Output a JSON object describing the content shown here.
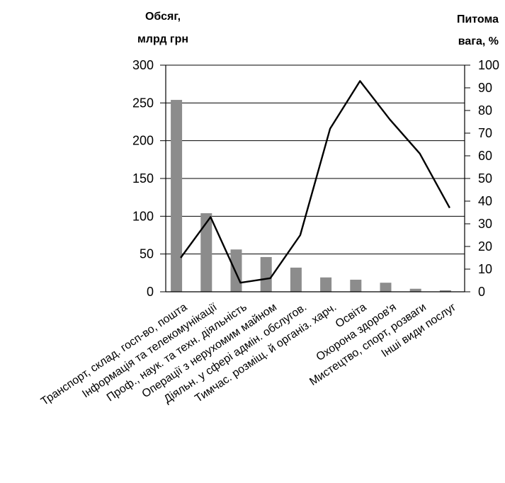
{
  "chart_data": {
    "type": "bar",
    "categories": [
      "Транспорт, склад. госп-во, пошта",
      "Інформація та телекомунікації",
      "Проф., наук. та техн. діяльність",
      "Операції з нерухомим майном",
      "Діяльн. у сфері адмін. обслугов.",
      "Тимчас. розміщ. й організ. харч.",
      "Освіта",
      "Охорона здоров'я",
      "Мистецтво, спорт, розваги",
      "Інші види послуг"
    ],
    "series": [
      {
        "type": "bar",
        "axis": "left",
        "color": "#8c8c8c",
        "values": [
          254,
          104,
          56,
          46,
          32,
          19,
          16,
          12,
          4,
          2
        ]
      },
      {
        "type": "line",
        "axis": "right",
        "color": "#000000",
        "values": [
          15,
          33,
          4,
          6,
          25,
          72,
          93,
          76,
          61,
          37
        ]
      }
    ],
    "y_left": {
      "title_lines": [
        "Обсяг,",
        "млрд грн"
      ],
      "range": [
        0,
        300
      ],
      "ticks": [
        "0",
        "50",
        "100",
        "150",
        "200",
        "250",
        "300"
      ]
    },
    "y_right": {
      "title_lines": [
        "Питома",
        "вага, %"
      ],
      "range": [
        0,
        100
      ],
      "ticks": [
        "0",
        "10",
        "20",
        "30",
        "40",
        "50",
        "60",
        "70",
        "80",
        "90",
        "100"
      ]
    },
    "grid": true,
    "grid_axis": "left"
  }
}
